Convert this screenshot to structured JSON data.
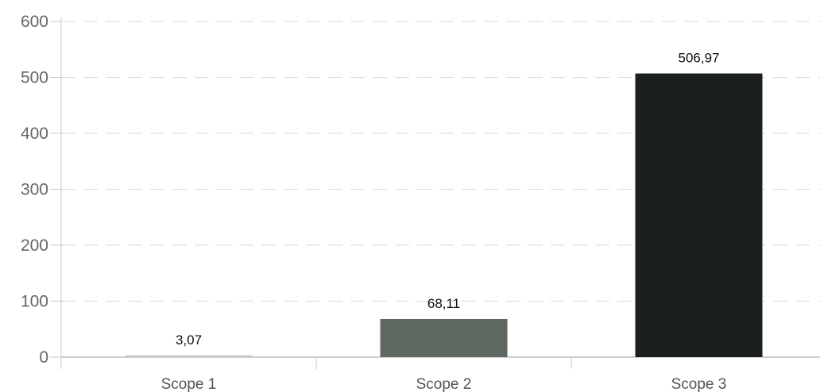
{
  "chart_data": {
    "type": "bar",
    "categories": [
      "Scope 1",
      "Scope 2",
      "Scope 3"
    ],
    "values": [
      3.07,
      68.11,
      506.97
    ],
    "data_labels": [
      "3,07",
      "68,11",
      "506,97"
    ],
    "colors": [
      "#c5cdc5",
      "#5e6760",
      "#1b201d"
    ],
    "ylim": [
      0,
      600
    ],
    "yticks": [
      "0",
      "100",
      "200",
      "300",
      "400",
      "500",
      "600"
    ],
    "title": "",
    "xlabel": "",
    "ylabel": "",
    "grid": "horizontal dashed",
    "legend": "none"
  }
}
